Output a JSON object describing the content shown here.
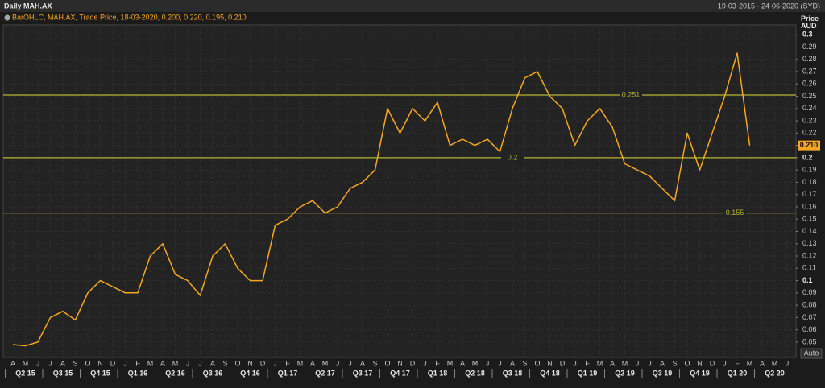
{
  "header": {
    "title": "Daily MAH.AX",
    "range": "19-03-2015 - 24-06-2020 (SYD)",
    "auto_button": "Auto"
  },
  "chart_data": {
    "type": "line",
    "legend": "BarOHLC, MAH.AX, Trade Price, 18-03-2020, 0.200, 0.220, 0.195, 0.210",
    "y_axis_label": "Price AUD",
    "categories": [
      "A",
      "M",
      "J",
      "J",
      "A",
      "S",
      "O",
      "N",
      "D",
      "J",
      "F",
      "M",
      "A",
      "M",
      "J",
      "J",
      "A",
      "S",
      "O",
      "N",
      "D",
      "J",
      "F",
      "M",
      "A",
      "M",
      "J",
      "J",
      "A",
      "S",
      "O",
      "N",
      "D",
      "J",
      "F",
      "M",
      "A",
      "M",
      "J",
      "J",
      "A",
      "S",
      "O",
      "N",
      "D",
      "J",
      "F",
      "M",
      "A",
      "M",
      "J",
      "J",
      "A",
      "S",
      "O",
      "N",
      "D",
      "J",
      "F",
      "M",
      "A",
      "M",
      "J"
    ],
    "quarters": [
      "Q2 15",
      "Q3 15",
      "Q4 15",
      "Q1 16",
      "Q2 16",
      "Q3 16",
      "Q4 16",
      "Q1 17",
      "Q2 17",
      "Q3 17",
      "Q4 17",
      "Q1 18",
      "Q2 18",
      "Q3 18",
      "Q4 18",
      "Q1 19",
      "Q2 19",
      "Q3 19",
      "Q4 19",
      "Q1 20",
      "Q2 20"
    ],
    "series": [
      {
        "name": "MAH.AX",
        "color": "#f5a623",
        "values": [
          0.048,
          0.047,
          0.05,
          0.07,
          0.075,
          0.068,
          0.09,
          0.1,
          0.095,
          0.09,
          0.09,
          0.12,
          0.13,
          0.105,
          0.1,
          0.088,
          0.12,
          0.13,
          0.11,
          0.1,
          0.1,
          0.145,
          0.15,
          0.16,
          0.165,
          0.155,
          0.16,
          0.175,
          0.18,
          0.19,
          0.24,
          0.22,
          0.24,
          0.23,
          0.245,
          0.21,
          0.215,
          0.21,
          0.215,
          0.205,
          0.24,
          0.265,
          0.27,
          0.25,
          0.24,
          0.21,
          0.23,
          0.24,
          0.225,
          0.195,
          0.19,
          0.185,
          0.175,
          0.165,
          0.22,
          0.19,
          0.22,
          0.25,
          0.285,
          0.21,
          null,
          null,
          null
        ]
      }
    ],
    "last_price": {
      "value": 0.21,
      "label": "0.210"
    },
    "levels": [
      0.251,
      0.2,
      0.155
    ],
    "level_color": "#b5b531",
    "ylim": [
      0.0375,
      0.308
    ],
    "yticks": [
      0.05,
      0.06,
      0.07,
      0.08,
      0.09,
      0.1,
      0.11,
      0.12,
      0.13,
      0.14,
      0.15,
      0.16,
      0.17,
      0.18,
      0.19,
      0.2,
      0.21,
      0.22,
      0.23,
      0.24,
      0.25,
      0.26,
      0.27,
      0.28,
      0.29,
      0.3
    ],
    "grid": true
  }
}
